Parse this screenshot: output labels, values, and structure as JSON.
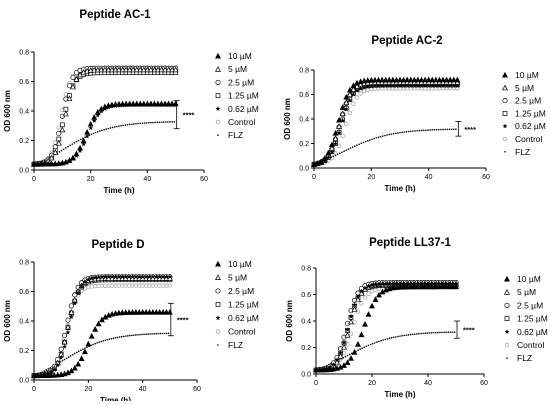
{
  "legend_labels": [
    "10 µM",
    "5 µM",
    "2.5 µM",
    "1.25 µM",
    "0.62 µM",
    "Control",
    "FLZ"
  ],
  "marker_shapes": [
    "triangle-filled",
    "triangle-open",
    "circle-open",
    "square-open",
    "star-filled",
    "circle-small-open",
    "dot-small"
  ],
  "colors": {
    "treated": "#000000",
    "control": "#aaaaaa",
    "flz": "#000000"
  },
  "chart_data": [
    {
      "type": "scatter",
      "title": "Peptide AC-1",
      "xlabel": "Time (h)",
      "ylabel": "OD 600 nm",
      "xlim": [
        0,
        60
      ],
      "ylim": [
        0,
        0.8
      ],
      "xticks": [
        0,
        20,
        40,
        60
      ],
      "yticks": [
        0.0,
        0.2,
        0.4,
        0.6,
        0.8
      ],
      "significance": "****",
      "bracket": [
        0.28,
        0.47
      ],
      "series": [
        {
          "name": "10 µM",
          "midpoint_h": 18.5,
          "rate": 0.45,
          "plateau": 0.45,
          "base": 0.04
        },
        {
          "name": "5 µM",
          "midpoint_h": 11,
          "rate": 0.55,
          "plateau": 0.68,
          "base": 0.04
        },
        {
          "name": "2.5 µM",
          "midpoint_h": 10,
          "rate": 0.6,
          "plateau": 0.69,
          "base": 0.04
        },
        {
          "name": "1.25 µM",
          "midpoint_h": 10.5,
          "rate": 0.55,
          "plateau": 0.66,
          "base": 0.04
        },
        {
          "name": "0.62 µM",
          "midpoint_h": 19,
          "rate": 0.45,
          "plateau": 0.44,
          "base": 0.04
        },
        {
          "name": "Control",
          "midpoint_h": 9.5,
          "rate": 0.6,
          "plateau": 0.68,
          "base": 0.04
        },
        {
          "name": "FLZ",
          "midpoint_h": 10,
          "rate": 0.12,
          "plateau": 0.33,
          "base": 0.03
        }
      ]
    },
    {
      "type": "scatter",
      "title": "Peptide AC-2",
      "xlabel": "Time (h)",
      "ylabel": "OD 600 nm",
      "xlim": [
        0,
        60
      ],
      "ylim": [
        0,
        0.8
      ],
      "xticks": [
        0,
        20,
        40,
        60
      ],
      "yticks": [
        0.0,
        0.2,
        0.4,
        0.6,
        0.8
      ],
      "significance": "****",
      "bracket": [
        0.26,
        0.38
      ],
      "series": [
        {
          "name": "10 µM",
          "midpoint_h": 8.5,
          "rate": 0.5,
          "plateau": 0.72,
          "base": 0.03
        },
        {
          "name": "5 µM",
          "midpoint_h": 9,
          "rate": 0.5,
          "plateau": 0.7,
          "base": 0.03
        },
        {
          "name": "2.5 µM",
          "midpoint_h": 9,
          "rate": 0.5,
          "plateau": 0.69,
          "base": 0.03
        },
        {
          "name": "1.25 µM",
          "midpoint_h": 9.5,
          "rate": 0.5,
          "plateau": 0.68,
          "base": 0.03
        },
        {
          "name": "0.62 µM",
          "midpoint_h": 9.5,
          "rate": 0.5,
          "plateau": 0.67,
          "base": 0.03
        },
        {
          "name": "Control",
          "midpoint_h": 11,
          "rate": 0.5,
          "plateau": 0.65,
          "base": 0.03
        },
        {
          "name": "FLZ",
          "midpoint_h": 10,
          "rate": 0.12,
          "plateau": 0.32,
          "base": 0.03
        }
      ]
    },
    {
      "type": "scatter",
      "title": "Peptide D",
      "xlabel": "Time (h)",
      "ylabel": "OD 600 nm",
      "xlim": [
        0,
        60
      ],
      "ylim": [
        0,
        0.8
      ],
      "xticks": [
        0,
        20,
        40,
        60
      ],
      "yticks": [
        0.0,
        0.2,
        0.4,
        0.6,
        0.8
      ],
      "significance": "****",
      "bracket": [
        0.3,
        0.52
      ],
      "series": [
        {
          "name": "10 µM",
          "midpoint_h": 20,
          "rate": 0.4,
          "plateau": 0.46,
          "base": 0.03
        },
        {
          "name": "5 µM",
          "midpoint_h": 12.5,
          "rate": 0.5,
          "plateau": 0.69,
          "base": 0.03
        },
        {
          "name": "2.5 µM",
          "midpoint_h": 12,
          "rate": 0.5,
          "plateau": 0.7,
          "base": 0.03
        },
        {
          "name": "1.25 µM",
          "midpoint_h": 12.5,
          "rate": 0.5,
          "plateau": 0.68,
          "base": 0.03
        },
        {
          "name": "0.62 µM",
          "midpoint_h": 13,
          "rate": 0.5,
          "plateau": 0.7,
          "base": 0.03
        },
        {
          "name": "Control",
          "midpoint_h": 12,
          "rate": 0.5,
          "plateau": 0.64,
          "base": 0.03
        },
        {
          "name": "FLZ",
          "midpoint_h": 11,
          "rate": 0.12,
          "plateau": 0.32,
          "base": 0.03
        }
      ]
    },
    {
      "type": "scatter",
      "title": "Peptide LL37-1",
      "xlabel": "Time (h)",
      "ylabel": "OD 600 nm",
      "xlim": [
        0,
        60
      ],
      "ylim": [
        0,
        0.8
      ],
      "xticks": [
        0,
        20,
        40,
        60
      ],
      "yticks": [
        0.0,
        0.2,
        0.4,
        0.6,
        0.8
      ],
      "significance": "****",
      "bracket": [
        0.27,
        0.4
      ],
      "series": [
        {
          "name": "10 µM",
          "midpoint_h": 17,
          "rate": 0.4,
          "plateau": 0.66,
          "base": 0.03
        },
        {
          "name": "5 µM",
          "midpoint_h": 12,
          "rate": 0.5,
          "plateau": 0.68,
          "base": 0.03
        },
        {
          "name": "2.5 µM",
          "midpoint_h": 11,
          "rate": 0.5,
          "plateau": 0.69,
          "base": 0.03
        },
        {
          "name": "1.25 µM",
          "midpoint_h": 11.5,
          "rate": 0.5,
          "plateau": 0.67,
          "base": 0.03
        },
        {
          "name": "0.62 µM",
          "midpoint_h": 11.5,
          "rate": 0.5,
          "plateau": 0.68,
          "base": 0.03
        },
        {
          "name": "Control",
          "midpoint_h": 13,
          "rate": 0.45,
          "plateau": 0.65,
          "base": 0.03
        },
        {
          "name": "FLZ",
          "midpoint_h": 11,
          "rate": 0.12,
          "plateau": 0.32,
          "base": 0.03
        }
      ]
    }
  ]
}
